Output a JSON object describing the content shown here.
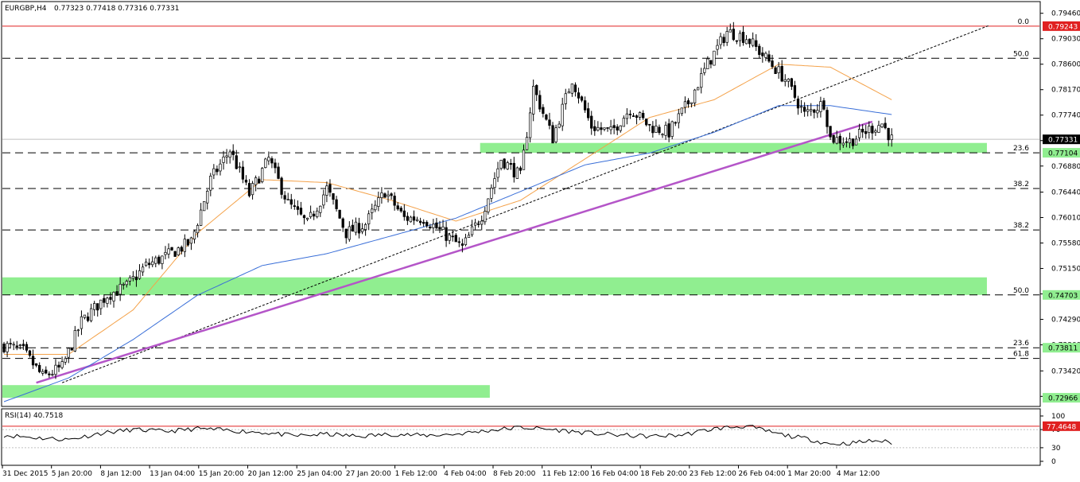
{
  "header": {
    "symbol": "EURGBP,H4",
    "ohlc": "0.77323 0.77418 0.77316 0.77331"
  },
  "rsi_header": "RSI(14) 40.7518",
  "colors": {
    "bull": "#000000",
    "bear": "#000000",
    "ma_fast": "#f4a24a",
    "ma_slow": "#3a6fd8",
    "trend": "#b455c8",
    "zone": "#90ee90",
    "red_line": "#e02020"
  },
  "chart_data": {
    "type": "candlestick",
    "title": "EURGBP,H4",
    "ylim": [
      0.7286,
      0.7955
    ],
    "y_ticks": [
      "0.79460",
      "0.79030",
      "0.78600",
      "0.78170",
      "0.77740",
      "0.77310",
      "0.76880",
      "0.76440",
      "0.76010",
      "0.75580",
      "0.75150",
      "0.74720",
      "0.74290",
      "0.73860",
      "0.73420",
      "0.72990"
    ],
    "x_ticks": [
      "31 Dec 2015",
      "5 Jan 20:00",
      "8 Jan 12:00",
      "13 Jan 04:00",
      "15 Jan 20:00",
      "20 Jan 12:00",
      "25 Jan 04:00",
      "27 Jan 20:00",
      "1 Feb 12:00",
      "4 Feb 04:00",
      "8 Feb 20:00",
      "11 Feb 12:00",
      "16 Feb 04:00",
      "18 Feb 20:00",
      "23 Feb 12:00",
      "26 Feb 04:00",
      "1 Mar 20:00",
      "4 Mar 12:00"
    ],
    "anchors": [
      [
        0,
        0.7385
      ],
      [
        6,
        0.7375
      ],
      [
        12,
        0.7332
      ],
      [
        18,
        0.7348
      ],
      [
        24,
        0.7425
      ],
      [
        32,
        0.747
      ],
      [
        38,
        0.7485
      ],
      [
        44,
        0.752
      ],
      [
        50,
        0.7535
      ],
      [
        58,
        0.756
      ],
      [
        64,
        0.7665
      ],
      [
        70,
        0.7715
      ],
      [
        76,
        0.764
      ],
      [
        82,
        0.77
      ],
      [
        88,
        0.7625
      ],
      [
        94,
        0.759
      ],
      [
        100,
        0.765
      ],
      [
        106,
        0.7575
      ],
      [
        112,
        0.759
      ],
      [
        118,
        0.7645
      ],
      [
        124,
        0.76
      ],
      [
        130,
        0.76
      ],
      [
        136,
        0.7575
      ],
      [
        142,
        0.755
      ],
      [
        148,
        0.7605
      ],
      [
        154,
        0.77
      ],
      [
        160,
        0.767
      ],
      [
        164,
        0.782
      ],
      [
        170,
        0.7735
      ],
      [
        176,
        0.7835
      ],
      [
        182,
        0.7755
      ],
      [
        188,
        0.7745
      ],
      [
        194,
        0.7785
      ],
      [
        200,
        0.7755
      ],
      [
        206,
        0.7745
      ],
      [
        212,
        0.7795
      ],
      [
        218,
        0.786
      ],
      [
        224,
        0.7915
      ],
      [
        230,
        0.7905
      ],
      [
        236,
        0.787
      ],
      [
        242,
        0.7835
      ],
      [
        248,
        0.7775
      ],
      [
        254,
        0.7795
      ],
      [
        256,
        0.7735
      ],
      [
        262,
        0.773
      ],
      [
        268,
        0.775
      ],
      [
        272,
        0.776
      ],
      [
        275,
        0.7733
      ]
    ],
    "ma_fast_anchors": [
      [
        0,
        0.737
      ],
      [
        20,
        0.737
      ],
      [
        40,
        0.7445
      ],
      [
        60,
        0.7575
      ],
      [
        80,
        0.7665
      ],
      [
        100,
        0.766
      ],
      [
        120,
        0.763
      ],
      [
        140,
        0.7595
      ],
      [
        160,
        0.763
      ],
      [
        180,
        0.77
      ],
      [
        200,
        0.777
      ],
      [
        220,
        0.78
      ],
      [
        240,
        0.786
      ],
      [
        256,
        0.7855
      ],
      [
        275,
        0.78
      ]
    ],
    "ma_slow_anchors": [
      [
        0,
        0.729
      ],
      [
        20,
        0.733
      ],
      [
        40,
        0.7395
      ],
      [
        60,
        0.747
      ],
      [
        80,
        0.752
      ],
      [
        100,
        0.754
      ],
      [
        120,
        0.757
      ],
      [
        140,
        0.76
      ],
      [
        160,
        0.7645
      ],
      [
        180,
        0.769
      ],
      [
        200,
        0.771
      ],
      [
        220,
        0.7745
      ],
      [
        240,
        0.779
      ],
      [
        256,
        0.779
      ],
      [
        275,
        0.7775
      ]
    ],
    "fib_levels": [
      {
        "label": "0.0",
        "value": 0.79243
      },
      {
        "label": "50.0",
        "value": 0.787
      },
      {
        "label": "23.6",
        "value": 0.77104
      },
      {
        "label": "38.2",
        "value": 0.765
      },
      {
        "label": "38.2",
        "value": 0.758
      },
      {
        "label": "50.0",
        "value": 0.74703
      },
      {
        "label": "23.6",
        "value": 0.73811
      },
      {
        "label": "61.8",
        "value": 0.7363
      }
    ],
    "price_tags": [
      {
        "text": "0.79243",
        "value": 0.79243,
        "style": "red"
      },
      {
        "text": "0.77331",
        "value": 0.77331,
        "style": "dark"
      },
      {
        "text": "0.77104",
        "value": 0.77104,
        "style": "green"
      },
      {
        "text": "0.74703",
        "value": 0.74703,
        "style": "green"
      },
      {
        "text": "0.73811",
        "value": 0.73811,
        "style": "green"
      },
      {
        "text": "0.72966",
        "value": 0.72966,
        "style": "green"
      }
    ],
    "zones": [
      {
        "from_bar": 148,
        "to_bar": 305,
        "low": 0.77104,
        "high": 0.7727
      },
      {
        "from_bar": 0,
        "to_bar": 305,
        "low": 0.74703,
        "high": 0.75
      },
      {
        "from_bar": 0,
        "to_bar": 151,
        "low": 0.72966,
        "high": 0.7318
      }
    ],
    "trendline": {
      "x1": 10,
      "y1": 0.7322,
      "x2": 269,
      "y2": 0.7763
    },
    "dotted_line": {
      "x1": 18,
      "y1": 0.7322,
      "x2": 305,
      "y2": 0.7925
    },
    "rsi": {
      "levels": [
        {
          "label": "100",
          "value": 100
        },
        {
          "label": "70",
          "value": 70
        },
        {
          "label": "30",
          "value": 30
        },
        {
          "label": "0",
          "value": 0
        }
      ],
      "tag": {
        "text": "77.4648",
        "value": 77.4648
      },
      "anchors": [
        [
          0,
          58
        ],
        [
          10,
          52
        ],
        [
          20,
          48
        ],
        [
          30,
          62
        ],
        [
          40,
          70
        ],
        [
          50,
          66
        ],
        [
          60,
          72
        ],
        [
          70,
          68
        ],
        [
          80,
          64
        ],
        [
          90,
          56
        ],
        [
          100,
          60
        ],
        [
          110,
          55
        ],
        [
          120,
          60
        ],
        [
          130,
          57
        ],
        [
          140,
          60
        ],
        [
          150,
          68
        ],
        [
          160,
          75
        ],
        [
          170,
          70
        ],
        [
          180,
          63
        ],
        [
          190,
          58
        ],
        [
          200,
          55
        ],
        [
          210,
          58
        ],
        [
          220,
          72
        ],
        [
          230,
          78
        ],
        [
          240,
          60
        ],
        [
          250,
          48
        ],
        [
          256,
          38
        ],
        [
          262,
          40
        ],
        [
          270,
          46
        ],
        [
          275,
          41
        ]
      ]
    }
  }
}
